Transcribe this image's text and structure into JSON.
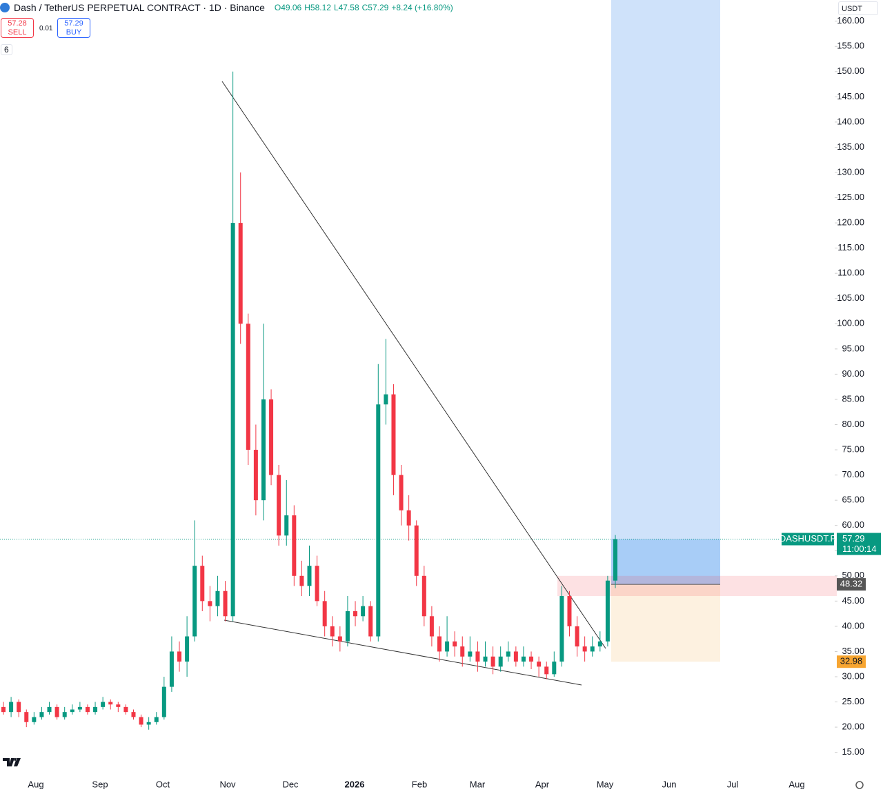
{
  "header": {
    "symbol": "Dash / TetherUS PERPETUAL CONTRACT · 1D · Binance",
    "ohlc": [
      "O49.06",
      "H58.12",
      "L47.58",
      "C57.29",
      "+8.24 (+16.80%)"
    ],
    "sell_price": "57.28",
    "sell": "SELL",
    "spread": "0.01",
    "buy_price": "57.29",
    "buy": "BUY",
    "indicators": "6",
    "currency": "USDT"
  },
  "chart_data": {
    "type": "candlestick",
    "up_color": "#089981",
    "down_color": "#f23645",
    "open": [
      24,
      23,
      25,
      23,
      21,
      22,
      23,
      24,
      22,
      23,
      23.5,
      24,
      23,
      24,
      25,
      24.5,
      24,
      23,
      22,
      20.5,
      21,
      22,
      28,
      35,
      33,
      38,
      52,
      45,
      44,
      47,
      42,
      120,
      100,
      75,
      65,
      85,
      70,
      58,
      62,
      50,
      48,
      52,
      45,
      40,
      38,
      37,
      43,
      42,
      44,
      38,
      84,
      86,
      70,
      63,
      60,
      50,
      42,
      38,
      35,
      37,
      36,
      34,
      35,
      33,
      34,
      32,
      34,
      35,
      33,
      34,
      33,
      32,
      30.5,
      33,
      46,
      40,
      36,
      35,
      36,
      37,
      49.06
    ],
    "high": [
      25,
      26,
      25.5,
      23.5,
      23,
      24,
      25,
      24.5,
      24,
      24.5,
      25,
      24.5,
      25,
      26,
      25.5,
      25,
      24.5,
      23.5,
      22.5,
      22,
      23,
      30,
      38,
      37,
      42,
      61,
      54,
      48,
      50,
      49,
      150,
      130,
      102,
      80,
      100,
      87,
      72,
      69,
      64,
      53,
      56,
      54,
      47,
      42,
      40,
      46,
      45,
      46,
      45,
      92,
      97,
      88,
      72,
      66,
      61,
      52,
      44,
      40,
      42,
      39,
      38,
      38,
      37,
      37,
      36,
      36,
      37,
      36,
      36,
      35,
      34,
      33,
      35,
      48,
      47,
      42,
      38,
      38,
      39,
      50,
      58.12
    ],
    "low": [
      22.5,
      22,
      22,
      20,
      20.5,
      21.5,
      22.5,
      21.5,
      21.5,
      22.5,
      23,
      22.5,
      22.5,
      23.5,
      23.5,
      23,
      22.5,
      21.5,
      20,
      19.5,
      20.5,
      21.5,
      27,
      31,
      30,
      37,
      43,
      41,
      42,
      41,
      41,
      96,
      72,
      62,
      61,
      68,
      56,
      56,
      48,
      46,
      46,
      44,
      38,
      36,
      35,
      36,
      40,
      41,
      37,
      37,
      80,
      66,
      60,
      57,
      48,
      40,
      36,
      33,
      34,
      34,
      32,
      33,
      31,
      32,
      30.5,
      31,
      33,
      32,
      32,
      31.5,
      30,
      29.5,
      30,
      32,
      38,
      34,
      33,
      34,
      35,
      36,
      47.58
    ],
    "close": [
      23,
      25,
      23,
      21,
      22,
      23,
      24,
      22,
      23,
      23.5,
      24,
      23,
      24,
      25,
      24.5,
      24,
      23,
      22,
      20.5,
      21,
      22,
      28,
      35,
      33,
      38,
      52,
      45,
      44,
      47,
      42,
      120,
      100,
      75,
      65,
      85,
      70,
      58,
      62,
      50,
      48,
      52,
      45,
      40,
      38,
      37,
      43,
      42,
      44,
      38,
      84,
      86,
      70,
      63,
      60,
      50,
      42,
      38,
      35,
      37,
      36,
      34,
      35,
      33,
      34,
      32,
      34,
      35,
      33,
      34,
      33,
      32,
      30.5,
      33,
      46,
      40,
      36,
      35,
      36,
      37,
      49.06,
      57.29
    ],
    "ylim": [
      10.3,
      164.2
    ],
    "yticks": [
      {
        "value": 15,
        "label": "15.00"
      },
      {
        "value": 20,
        "label": "20.00"
      },
      {
        "value": 25,
        "label": "25.00"
      },
      {
        "value": 30,
        "label": "30.00"
      },
      {
        "value": 35,
        "label": "35.00"
      },
      {
        "value": 40,
        "label": "40.00"
      },
      {
        "value": 45,
        "label": "45.00"
      },
      {
        "value": 50,
        "label": "50.00"
      },
      {
        "value": 55,
        "label": "55.00"
      },
      {
        "value": 60,
        "label": "60.00"
      },
      {
        "value": 65,
        "label": "65.00"
      },
      {
        "value": 70,
        "label": "70.00"
      },
      {
        "value": 75,
        "label": "75.00"
      },
      {
        "value": 80,
        "label": "80.00"
      },
      {
        "value": 85,
        "label": "85.00"
      },
      {
        "value": 90,
        "label": "90.00"
      },
      {
        "value": 95,
        "label": "95.00"
      },
      {
        "value": 100,
        "label": "100.00"
      },
      {
        "value": 105,
        "label": "105.00"
      },
      {
        "value": 110,
        "label": "110.00"
      },
      {
        "value": 115,
        "label": "115.00"
      },
      {
        "value": 120,
        "label": "120.00"
      },
      {
        "value": 125,
        "label": "125.00"
      },
      {
        "value": 130,
        "label": "130.00"
      },
      {
        "value": 135,
        "label": "135.00"
      },
      {
        "value": 140,
        "label": "140.00"
      },
      {
        "value": 145,
        "label": "145.00"
      },
      {
        "value": 150,
        "label": "150.00"
      },
      {
        "value": 155,
        "label": "155.00"
      },
      {
        "value": 160,
        "label": "160.00"
      }
    ],
    "x_labels": [
      "Aug",
      "Sep",
      "Oct",
      "Nov",
      "Dec",
      "2026",
      "Feb",
      "Mar",
      "Apr",
      "May",
      "Jun",
      "Jul",
      "Aug"
    ],
    "last": {
      "symbol": "DASHUSDT.P",
      "price": 57.29,
      "countdown": "11:00:14"
    },
    "position": {
      "entry": 48.32,
      "stop": 32.98
    }
  }
}
